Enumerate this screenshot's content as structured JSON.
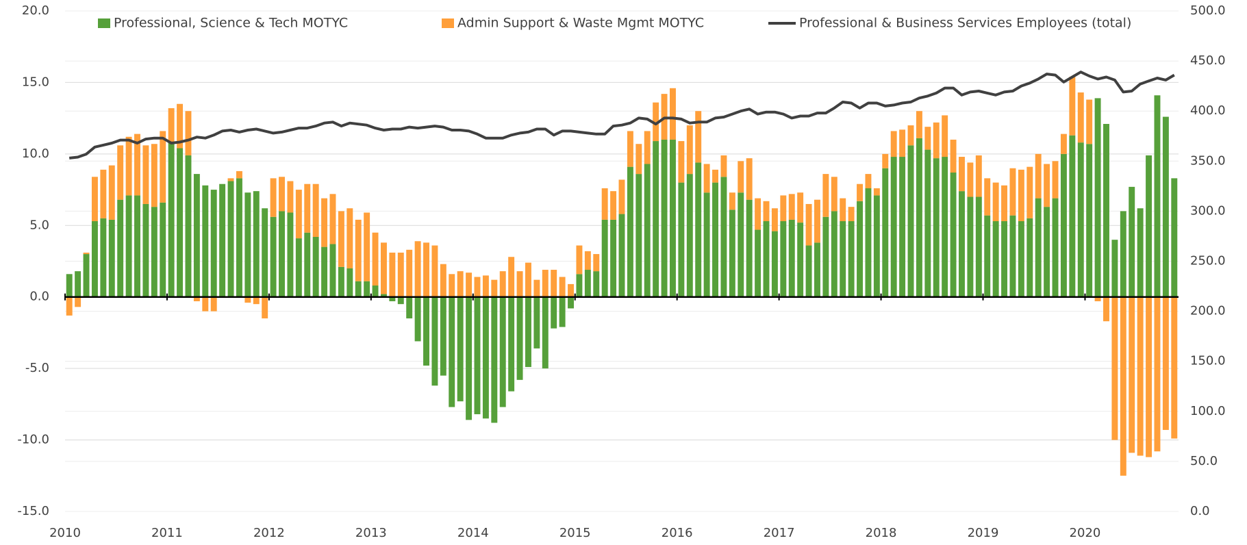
{
  "chart_data": {
    "type": "bar",
    "stacked": true,
    "grid": true,
    "categories": [
      "2010",
      null,
      null,
      null,
      null,
      null,
      null,
      null,
      null,
      null,
      null,
      null,
      "2011",
      null,
      null,
      null,
      null,
      null,
      null,
      null,
      null,
      null,
      null,
      null,
      "2012",
      null,
      null,
      null,
      null,
      null,
      null,
      null,
      null,
      null,
      null,
      null,
      "2013",
      null,
      null,
      null,
      null,
      null,
      null,
      null,
      null,
      null,
      null,
      null,
      "2014",
      null,
      null,
      null,
      null,
      null,
      null,
      null,
      null,
      null,
      null,
      null,
      "2015",
      null,
      null,
      null,
      null,
      null,
      null,
      null,
      null,
      null,
      null,
      null,
      "2016",
      null,
      null,
      null,
      null,
      null,
      null,
      null,
      null,
      null,
      null,
      null,
      "2017",
      null,
      null,
      null,
      null,
      null,
      null,
      null,
      null,
      null,
      null,
      null,
      "2018",
      null,
      null,
      null,
      null,
      null,
      null,
      null,
      null,
      null,
      null,
      null,
      "2019",
      null,
      null,
      null,
      null,
      null,
      null,
      null,
      null,
      null,
      null,
      null,
      "2020",
      null,
      null,
      null,
      null,
      null,
      null,
      null,
      null,
      null,
      null
    ],
    "series": [
      {
        "name": "Professional, Science & Tech MOTYC",
        "color": "#56a03a",
        "type": "bar",
        "values": [
          1.6,
          1.8,
          3.0,
          5.3,
          5.5,
          5.4,
          6.8,
          7.1,
          7.1,
          6.5,
          6.3,
          6.6,
          10.8,
          10.4,
          9.9,
          8.6,
          7.8,
          7.5,
          7.9,
          8.1,
          8.3,
          7.3,
          7.4,
          6.2,
          5.6,
          6.0,
          5.9,
          4.1,
          4.5,
          4.2,
          3.5,
          3.7,
          2.1,
          2.0,
          1.1,
          1.1,
          0.8,
          0.2,
          -0.3,
          -0.5,
          -1.5,
          -3.1,
          -4.8,
          -6.2,
          -5.5,
          -7.7,
          -7.3,
          -8.6,
          -8.2,
          -8.5,
          -8.8,
          -7.7,
          -6.6,
          -5.8,
          -4.9,
          -3.6,
          -5.0,
          -2.2,
          -2.1,
          -0.8,
          1.6,
          1.9,
          1.8,
          5.4,
          5.4,
          5.8,
          9.1,
          8.6,
          9.3,
          10.9,
          11.0,
          11.0,
          8.0,
          8.6,
          9.4,
          7.3,
          8.0,
          8.4,
          6.1,
          7.3,
          6.8,
          4.7,
          5.3,
          4.6,
          5.3,
          5.4,
          5.2,
          3.6,
          3.8,
          5.6,
          6.0,
          5.3,
          5.3,
          6.7,
          7.6,
          7.1,
          9.0,
          9.8,
          9.8,
          10.6,
          11.1,
          10.3,
          9.7,
          9.8,
          8.7,
          7.4,
          7.0,
          7.0,
          5.7,
          5.3,
          5.3,
          5.7,
          5.3,
          5.5,
          6.9,
          6.3,
          6.9,
          10.0,
          11.3,
          10.8,
          10.7,
          13.9,
          12.1,
          4.0,
          6.0,
          7.7,
          6.2,
          9.9,
          14.1,
          12.6,
          8.3
        ]
      },
      {
        "name": "Admin Support & Waste Mgmt MOTYC",
        "color": "#ff9f3a",
        "type": "bar",
        "values": [
          -1.3,
          -0.7,
          0.1,
          3.1,
          3.4,
          3.8,
          3.8,
          4.1,
          4.3,
          4.1,
          4.4,
          5.0,
          2.4,
          3.1,
          3.1,
          -0.3,
          -1.0,
          -1.0,
          0.0,
          0.2,
          0.5,
          -0.4,
          -0.5,
          -1.5,
          2.7,
          2.4,
          2.2,
          3.4,
          3.4,
          3.7,
          3.4,
          3.5,
          3.9,
          4.2,
          4.3,
          4.8,
          3.7,
          3.6,
          3.1,
          3.1,
          3.3,
          3.9,
          3.8,
          3.6,
          2.3,
          1.6,
          1.8,
          1.7,
          1.4,
          1.5,
          1.2,
          1.8,
          2.8,
          1.8,
          2.4,
          1.2,
          1.9,
          1.9,
          1.4,
          0.9,
          2.0,
          1.3,
          1.2,
          2.2,
          2.0,
          2.4,
          2.5,
          2.1,
          2.3,
          2.7,
          3.2,
          3.6,
          2.9,
          3.4,
          3.6,
          2.0,
          0.9,
          1.5,
          1.2,
          2.2,
          2.9,
          2.2,
          1.4,
          1.6,
          1.8,
          1.8,
          2.1,
          2.9,
          3.0,
          3.0,
          2.4,
          1.6,
          1.0,
          1.2,
          1.0,
          0.5,
          1.0,
          1.8,
          1.9,
          1.4,
          1.9,
          1.6,
          2.5,
          2.9,
          2.3,
          2.4,
          2.4,
          2.9,
          2.6,
          2.7,
          2.5,
          3.3,
          3.6,
          3.6,
          3.1,
          3.0,
          2.6,
          1.4,
          4.1,
          3.5,
          3.1,
          -0.3,
          -1.7,
          -10.0,
          -12.5,
          -10.9,
          -11.1,
          -11.2,
          -10.8,
          -9.3,
          -9.9
        ]
      },
      {
        "name": "Professional & Business Services Employees (total)",
        "color": "#404040",
        "type": "line",
        "axis": "y2",
        "values": [
          353,
          354,
          357,
          364,
          366,
          368,
          371,
          371,
          368,
          372,
          373,
          373,
          368,
          369,
          371,
          374,
          373,
          376,
          380,
          381,
          379,
          381,
          382,
          380,
          378,
          379,
          381,
          383,
          383,
          385,
          388,
          389,
          385,
          388,
          387,
          386,
          383,
          381,
          382,
          382,
          384,
          383,
          384,
          385,
          384,
          381,
          381,
          380,
          377,
          373,
          373,
          373,
          376,
          378,
          379,
          382,
          382,
          376,
          380,
          380,
          379,
          378,
          377,
          377,
          385,
          386,
          388,
          393,
          392,
          387,
          393,
          393,
          392,
          388,
          389,
          389,
          393,
          394,
          397,
          400,
          402,
          397,
          399,
          399,
          397,
          393,
          395,
          395,
          398,
          398,
          403,
          409,
          408,
          403,
          408,
          408,
          405,
          406,
          408,
          409,
          413,
          415,
          418,
          423,
          423,
          416,
          419,
          420,
          418,
          416,
          419,
          420,
          425,
          428,
          432,
          437,
          436,
          429,
          434,
          439,
          435,
          432,
          434,
          431,
          419,
          420,
          427,
          430,
          433,
          431,
          436
        ]
      }
    ],
    "ylim": [
      -15,
      20
    ],
    "yticks": [
      {
        "value": -15,
        "label": "-15.0"
      },
      {
        "value": -10,
        "label": "-10.0"
      },
      {
        "value": -5,
        "label": "-5.0"
      },
      {
        "value": 0,
        "label": "0.0"
      },
      {
        "value": 5,
        "label": "5.0"
      },
      {
        "value": 10,
        "label": "10.0"
      },
      {
        "value": 15,
        "label": "15.0"
      },
      {
        "value": 20,
        "label": "20.0"
      }
    ],
    "y2lim": [
      0,
      500
    ],
    "y2ticks": [
      {
        "value": 0,
        "label": "0.0"
      },
      {
        "value": 50,
        "label": "50.0"
      },
      {
        "value": 100,
        "label": "100.0"
      },
      {
        "value": 150,
        "label": "150.0"
      },
      {
        "value": 200,
        "label": "200.0"
      },
      {
        "value": 250,
        "label": "250.0"
      },
      {
        "value": 300,
        "label": "300.0"
      },
      {
        "value": 350,
        "label": "350.0"
      },
      {
        "value": 400,
        "label": "400.0"
      },
      {
        "value": 450,
        "label": "450.0"
      },
      {
        "value": 500,
        "label": "500.0"
      }
    ]
  }
}
